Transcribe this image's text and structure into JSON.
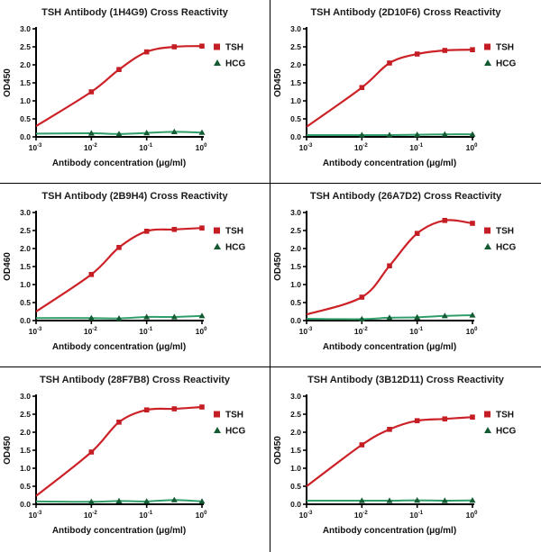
{
  "page": {
    "background_color": "#ffffff",
    "grid_border_color": "#000000"
  },
  "colors": {
    "tsh_line": "#cc2127",
    "tsh_marker": "#c41e24",
    "hcg_line": "#2f9e6a",
    "hcg_marker": "#145a32",
    "axis": "#000000"
  },
  "chart_data": [
    {
      "type": "line",
      "title": "TSH Antibody (1H4G9) Cross Reactivity",
      "xlabel": "Antibody concentration (μg/ml)",
      "ylabel": "OD450",
      "x_scale": "log10",
      "xlim": [
        0.001,
        1
      ],
      "ylim": [
        0,
        3
      ],
      "y_ticks": [
        0.0,
        0.5,
        1.0,
        1.5,
        2.0,
        2.5,
        3.0
      ],
      "x_tick_exponents": [
        -3,
        -2,
        -1,
        0
      ],
      "grid": false,
      "legend_position": "right",
      "series": [
        {
          "name": "TSH",
          "marker": "square",
          "line_color": "#cc2127",
          "marker_color": "#c41e24",
          "curve_start_x": 0.001,
          "curve_start_y": 0.3,
          "x": [
            0.01,
            0.0316,
            0.1,
            0.316,
            1.0
          ],
          "y": [
            1.25,
            1.87,
            2.36,
            2.5,
            2.52
          ]
        },
        {
          "name": "HCG",
          "marker": "triangle",
          "line_color": "#2f9e6a",
          "marker_color": "#145a32",
          "curve_start_x": 0.001,
          "curve_start_y": 0.09,
          "x": [
            0.01,
            0.0316,
            0.1,
            0.316,
            1.0
          ],
          "y": [
            0.1,
            0.08,
            0.11,
            0.14,
            0.12
          ]
        }
      ]
    },
    {
      "type": "line",
      "title": "TSH Antibody (2D10F6) Cross Reactivity",
      "xlabel": "Antibody concentration (μg/ml)",
      "ylabel": "OD450",
      "x_scale": "log10",
      "xlim": [
        0.001,
        1
      ],
      "ylim": [
        0,
        3
      ],
      "y_ticks": [
        0.0,
        0.5,
        1.0,
        1.5,
        2.0,
        2.5,
        3.0
      ],
      "x_tick_exponents": [
        -3,
        -2,
        -1,
        0
      ],
      "grid": false,
      "legend_position": "right",
      "series": [
        {
          "name": "TSH",
          "marker": "square",
          "line_color": "#cc2127",
          "marker_color": "#c41e24",
          "curve_start_x": 0.001,
          "curve_start_y": 0.28,
          "x": [
            0.01,
            0.0316,
            0.1,
            0.316,
            1.0
          ],
          "y": [
            1.37,
            2.05,
            2.3,
            2.4,
            2.42
          ]
        },
        {
          "name": "HCG",
          "marker": "triangle",
          "line_color": "#2f9e6a",
          "marker_color": "#145a32",
          "curve_start_x": 0.001,
          "curve_start_y": 0.05,
          "x": [
            0.01,
            0.0316,
            0.1,
            0.316,
            1.0
          ],
          "y": [
            0.05,
            0.05,
            0.06,
            0.07,
            0.07
          ]
        }
      ]
    },
    {
      "type": "line",
      "title": "TSH Antibody (2B9H4) Cross Reactivity",
      "xlabel": "Antibody concentration (μg/ml)",
      "ylabel": "OD460",
      "x_scale": "log10",
      "xlim": [
        0.001,
        1
      ],
      "ylim": [
        0,
        3
      ],
      "y_ticks": [
        0.0,
        0.5,
        1.0,
        1.5,
        2.0,
        2.5,
        3.0
      ],
      "x_tick_exponents": [
        -3,
        -2,
        -1,
        0
      ],
      "grid": false,
      "legend_position": "right",
      "series": [
        {
          "name": "TSH",
          "marker": "square",
          "line_color": "#cc2127",
          "marker_color": "#c41e24",
          "curve_start_x": 0.001,
          "curve_start_y": 0.25,
          "x": [
            0.01,
            0.0316,
            0.1,
            0.316,
            1.0
          ],
          "y": [
            1.28,
            2.03,
            2.48,
            2.53,
            2.57
          ]
        },
        {
          "name": "HCG",
          "marker": "triangle",
          "line_color": "#2f9e6a",
          "marker_color": "#145a32",
          "curve_start_x": 0.001,
          "curve_start_y": 0.07,
          "x": [
            0.01,
            0.0316,
            0.1,
            0.316,
            1.0
          ],
          "y": [
            0.07,
            0.06,
            0.1,
            0.1,
            0.13
          ]
        }
      ]
    },
    {
      "type": "line",
      "title": "TSH Antibody (26A7D2) Cross Reactivity",
      "xlabel": "Antibody concentration (μg/ml)",
      "ylabel": "OD450",
      "x_scale": "log10",
      "xlim": [
        0.001,
        1
      ],
      "ylim": [
        0,
        3
      ],
      "y_ticks": [
        0.0,
        0.5,
        1.0,
        1.5,
        2.0,
        2.5,
        3.0
      ],
      "x_tick_exponents": [
        -3,
        -2,
        -1,
        0
      ],
      "grid": false,
      "legend_position": "right",
      "series": [
        {
          "name": "TSH",
          "marker": "square",
          "line_color": "#cc2127",
          "marker_color": "#c41e24",
          "curve_start_x": 0.001,
          "curve_start_y": 0.17,
          "x": [
            0.01,
            0.0316,
            0.1,
            0.316,
            1.0
          ],
          "y": [
            0.65,
            1.52,
            2.42,
            2.78,
            2.7
          ]
        },
        {
          "name": "HCG",
          "marker": "triangle",
          "line_color": "#2f9e6a",
          "marker_color": "#145a32",
          "curve_start_x": 0.001,
          "curve_start_y": 0.05,
          "x": [
            0.01,
            0.0316,
            0.1,
            0.316,
            1.0
          ],
          "y": [
            0.04,
            0.08,
            0.09,
            0.13,
            0.15
          ]
        }
      ]
    },
    {
      "type": "line",
      "title": "TSH Antibody (28F7B8) Cross Reactivity",
      "xlabel": "Antibody concentration (μg/ml)",
      "ylabel": "OD450",
      "x_scale": "log10",
      "xlim": [
        0.001,
        1
      ],
      "ylim": [
        0,
        3
      ],
      "y_ticks": [
        0.0,
        0.5,
        1.0,
        1.5,
        2.0,
        2.5,
        3.0
      ],
      "x_tick_exponents": [
        -3,
        -2,
        -1,
        0
      ],
      "grid": false,
      "legend_position": "right",
      "series": [
        {
          "name": "TSH",
          "marker": "square",
          "line_color": "#cc2127",
          "marker_color": "#c41e24",
          "curve_start_x": 0.001,
          "curve_start_y": 0.23,
          "x": [
            0.01,
            0.0316,
            0.1,
            0.316,
            1.0
          ],
          "y": [
            1.45,
            2.28,
            2.62,
            2.65,
            2.7
          ]
        },
        {
          "name": "HCG",
          "marker": "triangle",
          "line_color": "#2f9e6a",
          "marker_color": "#145a32",
          "curve_start_x": 0.001,
          "curve_start_y": 0.08,
          "x": [
            0.01,
            0.0316,
            0.1,
            0.316,
            1.0
          ],
          "y": [
            0.07,
            0.09,
            0.08,
            0.12,
            0.08
          ]
        }
      ]
    },
    {
      "type": "line",
      "title": "TSH Antibody (3B12D11) Cross Reactivity",
      "xlabel": "Antibody concentration (μg/ml)",
      "ylabel": "OD450",
      "x_scale": "log10",
      "xlim": [
        0.001,
        1
      ],
      "ylim": [
        0,
        3
      ],
      "y_ticks": [
        0.0,
        0.5,
        1.0,
        1.5,
        2.0,
        2.5,
        3.0
      ],
      "x_tick_exponents": [
        -3,
        -2,
        -1,
        0
      ],
      "grid": false,
      "legend_position": "right",
      "series": [
        {
          "name": "TSH",
          "marker": "square",
          "line_color": "#cc2127",
          "marker_color": "#c41e24",
          "curve_start_x": 0.001,
          "curve_start_y": 0.5,
          "x": [
            0.01,
            0.0316,
            0.1,
            0.316,
            1.0
          ],
          "y": [
            1.65,
            2.08,
            2.32,
            2.37,
            2.42
          ]
        },
        {
          "name": "HCG",
          "marker": "triangle",
          "line_color": "#2f9e6a",
          "marker_color": "#145a32",
          "curve_start_x": 0.001,
          "curve_start_y": 0.1,
          "x": [
            0.01,
            0.0316,
            0.1,
            0.316,
            1.0
          ],
          "y": [
            0.1,
            0.1,
            0.11,
            0.1,
            0.11
          ]
        }
      ]
    }
  ]
}
